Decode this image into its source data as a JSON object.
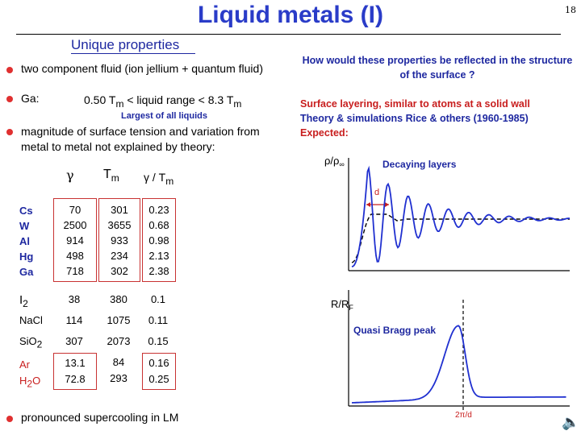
{
  "header": {
    "title": "Liquid metals (I)",
    "page_number": "18"
  },
  "left": {
    "subtitle": "Unique properties",
    "bullet1": "two component fluid (ion jellium + quantum fluid)",
    "ga_label": "Ga:",
    "ga_range": "0.50 T",
    "ga_sub": "m",
    "ga_mid": " < liquid range  < 8.3 T",
    "ga_sub2": "m",
    "largest": "Largest of all liquids",
    "bullet3_line1": "magnitude of surface tension and variation from",
    "bullet3_line2": "metal to metal not explained by theory:",
    "table_headers": {
      "gamma": "γ",
      "tm": "T",
      "tm_sub": "m",
      "ratio": "γ / T",
      "ratio_sub": "m"
    },
    "metals": [
      "Cs",
      "W",
      "Al",
      "Hg",
      "Ga"
    ],
    "metal_gamma": [
      "70",
      "2500",
      "914",
      "498",
      "718"
    ],
    "metal_tm": [
      "301",
      "3655",
      "933",
      "234",
      "302"
    ],
    "metal_ratio": [
      "0.23",
      "0.68",
      "0.98",
      "2.13",
      "2.38"
    ],
    "rows": [
      {
        "name": "I",
        "sub": "2",
        "gamma": "38",
        "tm": "380",
        "ratio": "0.1"
      },
      {
        "name": "NaCl",
        "sub": "",
        "gamma": "114",
        "tm": "1075",
        "ratio": "0.11"
      },
      {
        "name": "SiO",
        "sub": "2",
        "gamma": "307",
        "tm": "2073",
        "ratio": "0.15"
      }
    ],
    "boxed": {
      "names": [
        "Ar",
        "H"
      ],
      "h2o_sub": "2",
      "h2o_tail": "O",
      "gamma": [
        "13.1",
        "72.8"
      ],
      "tm": [
        "84",
        "293"
      ],
      "ratio": [
        "0.16",
        "0.25"
      ]
    },
    "bullet4": "pronounced supercooling in LM"
  },
  "right": {
    "question": "How would these properties be reflected in the structure of the surface ?",
    "surface_layering": "Surface layering,  similar to atoms at a solid wall",
    "theory": "Theory & simulations Rice & others (1960-1985)",
    "expected": "Expected:",
    "plot1": {
      "ylabel": "ρ/ρ",
      "ylabel_sub": "∞",
      "legend": "Decaying layers",
      "d_label": "d"
    },
    "plot2": {
      "ylabel": "R/R",
      "ylabel_sub": "F",
      "legend": "Quasi Bragg peak",
      "xlabel": "2π/d"
    }
  },
  "colors": {
    "title": "#2a3cc8",
    "navy": "#1e28a0",
    "red": "#c81e1e",
    "bullet": "#e03030",
    "curve": "#2030d0"
  }
}
